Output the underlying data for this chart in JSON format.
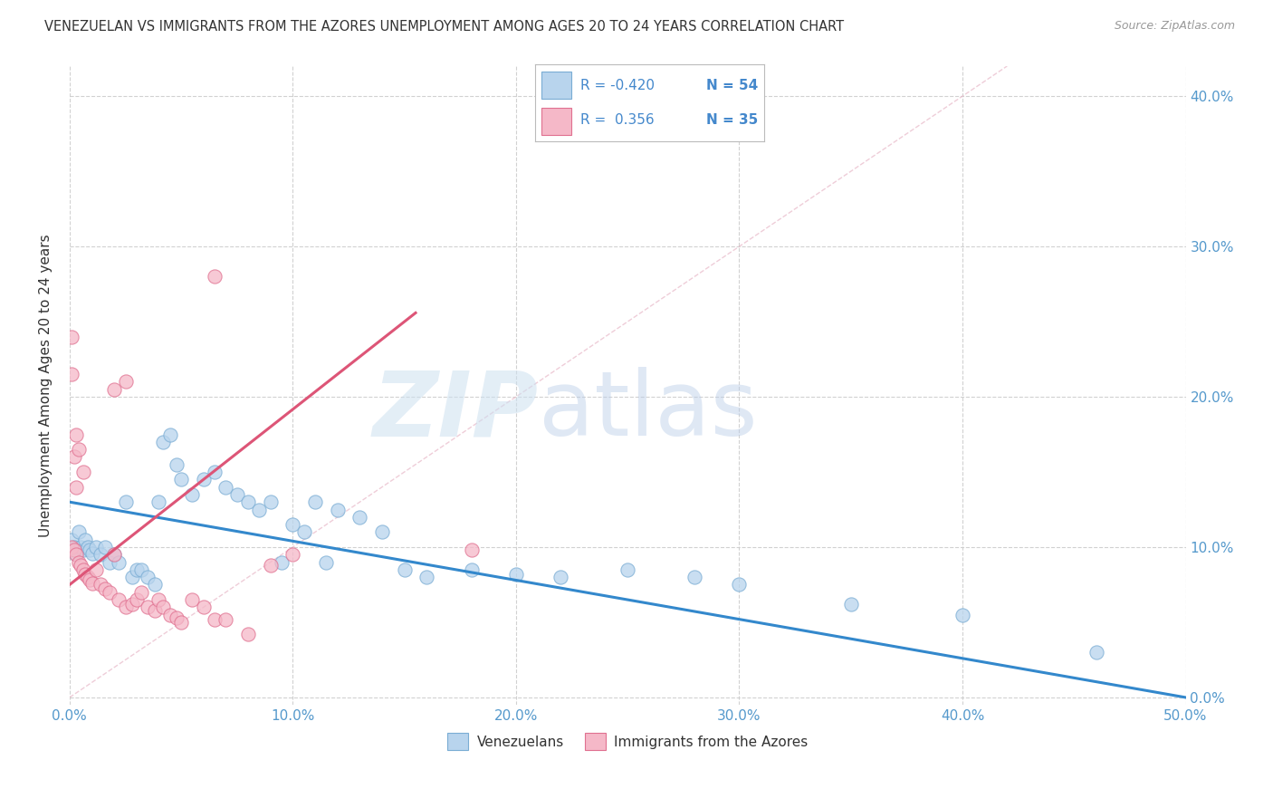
{
  "title": "VENEZUELAN VS IMMIGRANTS FROM THE AZORES UNEMPLOYMENT AMONG AGES 20 TO 24 YEARS CORRELATION CHART",
  "source": "Source: ZipAtlas.com",
  "ylabel": "Unemployment Among Ages 20 to 24 years",
  "xlim": [
    0,
    0.5
  ],
  "ylim": [
    -0.005,
    0.42
  ],
  "xticks": [
    0.0,
    0.1,
    0.2,
    0.3,
    0.4,
    0.5
  ],
  "yticks": [
    0.0,
    0.1,
    0.2,
    0.3,
    0.4
  ],
  "xticklabels": [
    "0.0%",
    "10.0%",
    "20.0%",
    "30.0%",
    "40.0%",
    "50.0%"
  ],
  "yticklabels_right": [
    "0.0%",
    "10.0%",
    "20.0%",
    "30.0%",
    "40.0%"
  ],
  "legend_R1": "-0.420",
  "legend_N1": "54",
  "legend_R2": "0.356",
  "legend_N2": "35",
  "color_blue_fill": "#b8d4ed",
  "color_blue_edge": "#7aadd4",
  "color_pink_fill": "#f5b8c8",
  "color_pink_edge": "#e07090",
  "color_blue_line": "#3388cc",
  "color_pink_line": "#dd5577",
  "color_diag": "#cccccc",
  "legend_label1": "Venezuelans",
  "legend_label2": "Immigrants from the Azores",
  "venezuelan_x": [
    0.001,
    0.002,
    0.003,
    0.004,
    0.005,
    0.006,
    0.007,
    0.008,
    0.009,
    0.01,
    0.012,
    0.014,
    0.016,
    0.018,
    0.02,
    0.022,
    0.025,
    0.028,
    0.03,
    0.032,
    0.035,
    0.038,
    0.04,
    0.042,
    0.045,
    0.048,
    0.05,
    0.055,
    0.06,
    0.065,
    0.07,
    0.075,
    0.08,
    0.085,
    0.09,
    0.095,
    0.1,
    0.105,
    0.11,
    0.115,
    0.12,
    0.13,
    0.14,
    0.15,
    0.16,
    0.18,
    0.2,
    0.22,
    0.25,
    0.28,
    0.3,
    0.35,
    0.4,
    0.46
  ],
  "venezuelan_y": [
    0.105,
    0.1,
    0.095,
    0.11,
    0.1,
    0.098,
    0.105,
    0.1,
    0.098,
    0.096,
    0.1,
    0.095,
    0.1,
    0.09,
    0.095,
    0.09,
    0.13,
    0.08,
    0.085,
    0.085,
    0.08,
    0.075,
    0.13,
    0.17,
    0.175,
    0.155,
    0.145,
    0.135,
    0.145,
    0.15,
    0.14,
    0.135,
    0.13,
    0.125,
    0.13,
    0.09,
    0.115,
    0.11,
    0.13,
    0.09,
    0.125,
    0.12,
    0.11,
    0.085,
    0.08,
    0.085,
    0.082,
    0.08,
    0.085,
    0.08,
    0.075,
    0.062,
    0.055,
    0.03
  ],
  "azores_x": [
    0.001,
    0.002,
    0.003,
    0.004,
    0.005,
    0.006,
    0.007,
    0.008,
    0.009,
    0.01,
    0.012,
    0.014,
    0.016,
    0.018,
    0.02,
    0.022,
    0.025,
    0.028,
    0.03,
    0.032,
    0.035,
    0.038,
    0.04,
    0.042,
    0.045,
    0.048,
    0.05,
    0.055,
    0.06,
    0.065,
    0.07,
    0.08,
    0.09,
    0.1,
    0.18
  ],
  "azores_y": [
    0.1,
    0.098,
    0.095,
    0.09,
    0.088,
    0.085,
    0.082,
    0.08,
    0.078,
    0.076,
    0.085,
    0.075,
    0.072,
    0.07,
    0.095,
    0.065,
    0.06,
    0.062,
    0.065,
    0.07,
    0.06,
    0.058,
    0.065,
    0.06,
    0.055,
    0.053,
    0.05,
    0.065,
    0.06,
    0.052,
    0.052,
    0.042,
    0.088,
    0.095,
    0.098
  ],
  "azores_outliers_x": [
    0.001,
    0.001,
    0.002,
    0.003,
    0.003,
    0.004,
    0.006,
    0.02,
    0.025,
    0.065
  ],
  "azores_outliers_y": [
    0.24,
    0.215,
    0.16,
    0.14,
    0.175,
    0.165,
    0.15,
    0.205,
    0.21,
    0.28
  ]
}
